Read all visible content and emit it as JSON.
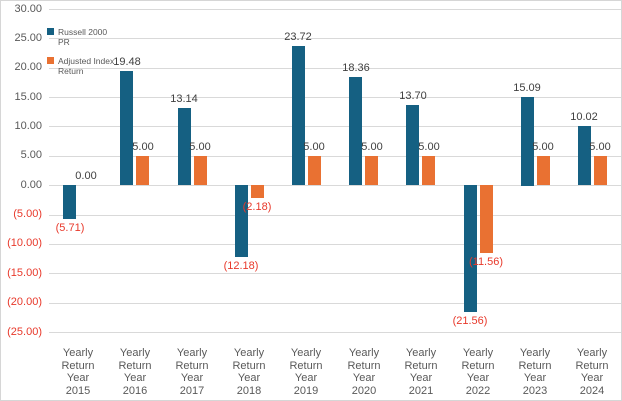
{
  "chart_data": {
    "type": "bar",
    "title": "",
    "categories": [
      "Yearly Return Year 2015",
      "Yearly Return Year 2016",
      "Yearly Return Year 2017",
      "Yearly Return Year 2018",
      "Yearly Return Year 2019",
      "Yearly Return Year 2020",
      "Yearly Return Year 2021",
      "Yearly Return Year 2022",
      "Yearly Return Year 2023",
      "Yearly Return Year 2024"
    ],
    "series": [
      {
        "name": "Russell 2000 PR",
        "color": "#156082",
        "values": [
          -5.71,
          19.48,
          13.14,
          -12.18,
          23.72,
          18.36,
          13.7,
          -21.56,
          15.09,
          10.02
        ],
        "labels": [
          "(5.71)",
          "19.48",
          "13.14",
          "(12.18)",
          "23.72",
          "18.36",
          "13.70",
          "(21.56)",
          "15.09",
          "10.02"
        ]
      },
      {
        "name": "Adjusted Index Return",
        "color": "#E97132",
        "values": [
          0.0,
          5.0,
          5.0,
          -2.18,
          5.0,
          5.0,
          5.0,
          -11.56,
          5.0,
          5.0
        ],
        "labels": [
          "0.00",
          "5.00",
          "5.00",
          "(2.18)",
          "5.00",
          "5.00",
          "5.00",
          "(11.56)",
          "5.00",
          "5.00"
        ]
      }
    ],
    "xlabel": "",
    "ylabel": "",
    "ylim": [
      -25,
      30
    ],
    "ytick_step": 5,
    "ytick_labels": [
      "30.00",
      "25.00",
      "20.00",
      "15.00",
      "10.00",
      "5.00",
      "0.00",
      "(5.00)",
      "(10.00)",
      "(15.00)",
      "(20.00)",
      "(25.00)"
    ],
    "grid": true,
    "legend_position": "top-left-inside",
    "value_format": "two decimals, negatives shown in red within parentheses"
  },
  "colors": {
    "series1": "#156082",
    "series2": "#E97132",
    "gridline": "#d9d9d9",
    "axis_text": "#595959",
    "data_label": "#404040",
    "negative_text": "#e8392b",
    "background": "#ffffff",
    "border": "#d6d6d6"
  }
}
